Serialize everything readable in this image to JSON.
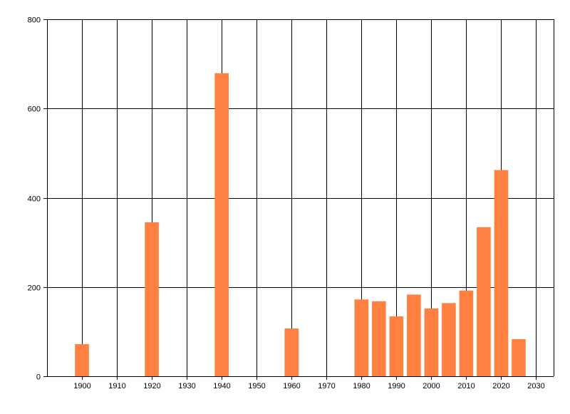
{
  "chart_data": {
    "type": "bar",
    "title": "",
    "xlabel": "",
    "ylabel": "",
    "x": [
      1900,
      1920,
      1940,
      1960,
      1980,
      1985,
      1990,
      1995,
      2000,
      2005,
      2010,
      2015,
      2020,
      2025
    ],
    "values": [
      72,
      345,
      679,
      107,
      172,
      168,
      134,
      183,
      152,
      164,
      192,
      334,
      462,
      83
    ],
    "xlim": [
      1890,
      2035
    ],
    "ylim": [
      0,
      800
    ],
    "x_ticks": [
      1900,
      1910,
      1920,
      1930,
      1940,
      1950,
      1960,
      1970,
      1980,
      1990,
      2000,
      2010,
      2020,
      2030
    ],
    "x_tick_labels": [
      "1900",
      "1910",
      "1920",
      "1930",
      "1940",
      "1950",
      "1960",
      "1970",
      "1980",
      "1990",
      "2000",
      "2010",
      "2020",
      "2030"
    ],
    "y_ticks": [
      0,
      200,
      400,
      600,
      800
    ],
    "y_tick_labels": [
      "0",
      "200",
      "400",
      "600",
      "800"
    ],
    "grid": true,
    "bar_color": "#ff8040",
    "grid_color": "#000000"
  }
}
